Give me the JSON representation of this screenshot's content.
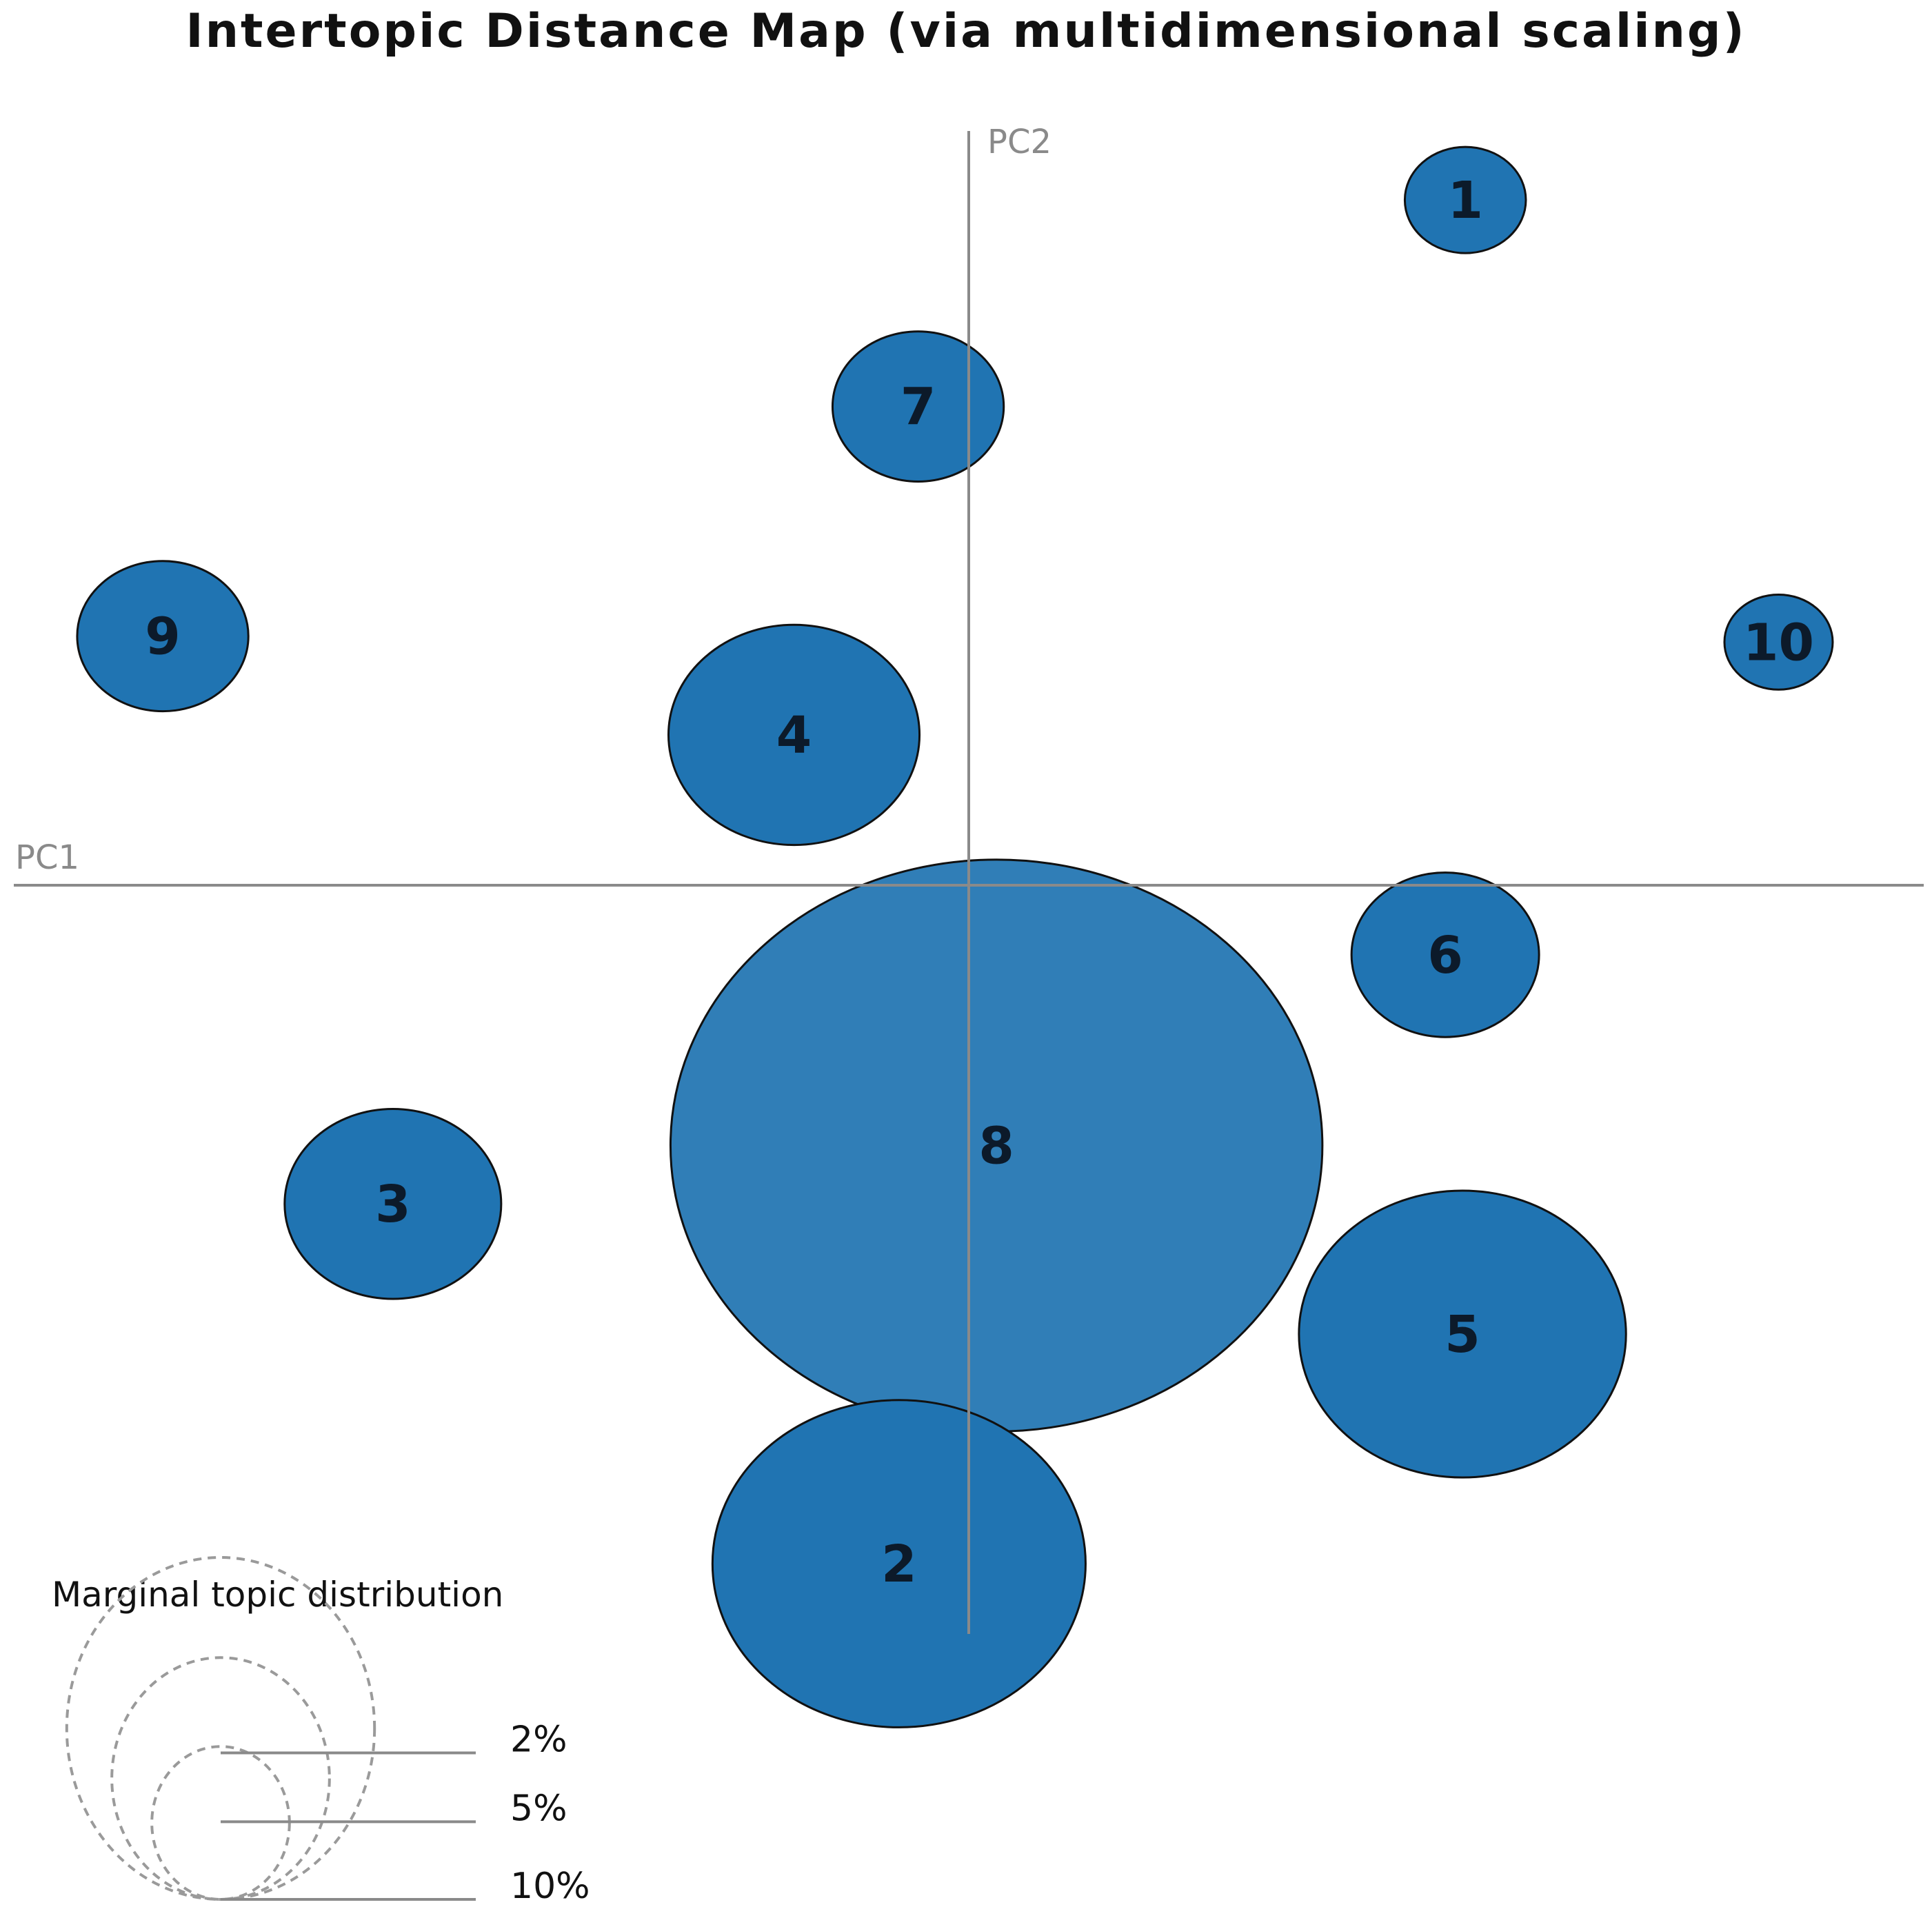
{
  "chart_data": {
    "type": "scatter",
    "title": "Intertopic Distance Map (via multidimensional scaling)",
    "xlabel": "PC1",
    "ylabel": "PC2",
    "xlim": [
      -1.0,
      1.0
    ],
    "ylim": [
      -1.0,
      1.0
    ],
    "grid": false,
    "marker_color": "#2074b2",
    "topics": [
      {
        "label": "1",
        "x": 0.52,
        "y": 0.916,
        "size": 1.0
      },
      {
        "label": "2",
        "x": -0.073,
        "y": -0.907,
        "size": 9.5
      },
      {
        "label": "3",
        "x": -0.603,
        "y": -0.426,
        "size": 3.2
      },
      {
        "label": "4",
        "x": -0.183,
        "y": 0.201,
        "size": 4.3
      },
      {
        "label": "5",
        "x": 0.517,
        "y": -0.6,
        "size": 7.3
      },
      {
        "label": "6",
        "x": 0.499,
        "y": -0.093,
        "size": 2.4
      },
      {
        "label": "7",
        "x": -0.053,
        "y": 0.64,
        "size": 2.0
      },
      {
        "label": "8",
        "x": 0.029,
        "y": -0.348,
        "size": 29.0
      },
      {
        "label": "9",
        "x": -0.844,
        "y": 0.333,
        "size": 2.0
      },
      {
        "label": "10",
        "x": 0.848,
        "y": 0.325,
        "size": 0.8
      }
    ],
    "legend": {
      "title": "Marginal topic distribution",
      "entries": [
        {
          "label": "2%",
          "value": 2
        },
        {
          "label": "5%",
          "value": 5
        },
        {
          "label": "10%",
          "value": 10
        }
      ]
    }
  }
}
